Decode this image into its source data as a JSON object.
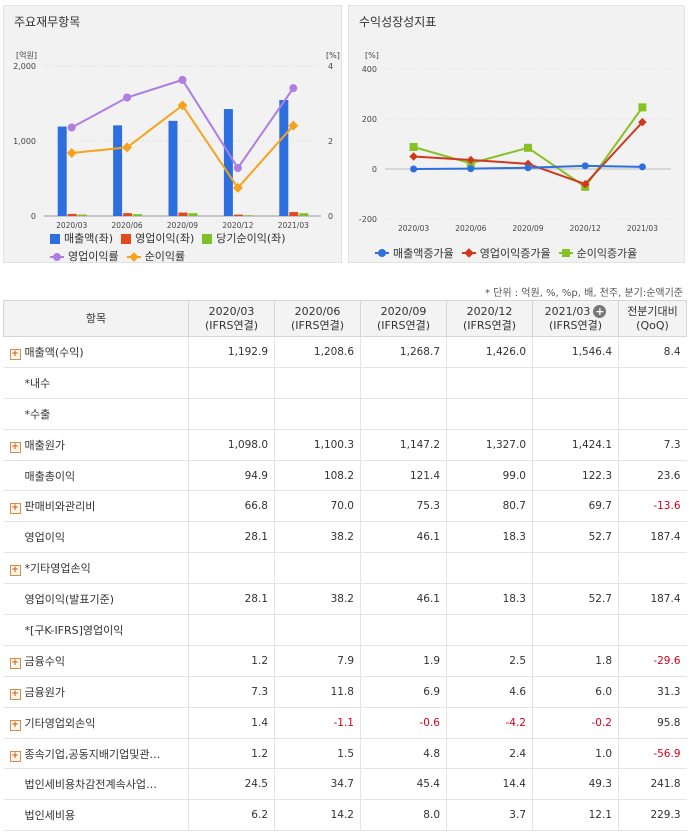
{
  "colors": {
    "revenue": "#2e6fe0",
    "op_income": "#e24a1b",
    "net_income": "#7dc12a",
    "op_margin": "#ae7ee0",
    "net_margin": "#f7a21a",
    "rev_growth": "#2e6fe0",
    "op_growth": "#d0381e",
    "net_growth": "#86c224",
    "negative": "#d0021b"
  },
  "left_panel": {
    "title": "주요재무항목",
    "y_left_unit": "[억원]",
    "y_right_unit": "[%]",
    "legend": [
      {
        "label": "매출액(좌)",
        "key": "revenue",
        "shape": "square"
      },
      {
        "label": "영업이익(좌)",
        "key": "op_income",
        "shape": "square"
      },
      {
        "label": "당기순이익(좌)",
        "key": "net_income",
        "shape": "square"
      },
      {
        "label": "영업이익률",
        "key": "op_margin",
        "shape": "circle"
      },
      {
        "label": "순이익률",
        "key": "net_margin",
        "shape": "diamond"
      }
    ]
  },
  "right_panel": {
    "title": "수익성장성지표",
    "y_unit": "[%]",
    "legend": [
      {
        "label": "매출액증가율",
        "key": "rev_growth",
        "shape": "circle"
      },
      {
        "label": "영업이익증가율",
        "key": "op_growth",
        "shape": "diamond"
      },
      {
        "label": "순이익증가율",
        "key": "net_growth",
        "shape": "square"
      }
    ]
  },
  "chart_data": [
    {
      "type": "bar",
      "title": "주요재무항목",
      "categories": [
        "2020/03",
        "2020/06",
        "2020/09",
        "2020/12",
        "2021/03"
      ],
      "y_left_ticks": [
        "0",
        "1,000",
        "2,000"
      ],
      "y_left_lim": [
        0,
        2000
      ],
      "y_right_ticks": [
        "0",
        "2",
        "4"
      ],
      "y_right_lim": [
        0,
        4
      ],
      "series": [
        {
          "name": "매출액(좌)",
          "axis": "left",
          "type": "bar",
          "values": [
            1192.9,
            1208.6,
            1268.7,
            1426.0,
            1546.4
          ]
        },
        {
          "name": "영업이익(좌)",
          "axis": "left",
          "type": "bar",
          "values": [
            28.1,
            38.2,
            46.1,
            18.3,
            52.7
          ]
        },
        {
          "name": "당기순이익(좌)",
          "axis": "left",
          "type": "bar",
          "values": [
            20.0,
            24.5,
            37.4,
            10.7,
            37.2
          ]
        },
        {
          "name": "영업이익률",
          "axis": "right",
          "type": "line",
          "values": [
            2.36,
            3.16,
            3.63,
            1.28,
            3.41
          ]
        },
        {
          "name": "순이익률",
          "axis": "right",
          "type": "line",
          "values": [
            1.68,
            1.83,
            2.95,
            0.75,
            2.41
          ]
        }
      ],
      "grid": true
    },
    {
      "type": "line",
      "title": "수익성장성지표",
      "categories": [
        "2020/03",
        "2020/06",
        "2020/09",
        "2020/12",
        "2021/03"
      ],
      "y_ticks": [
        "-200",
        "0",
        "200",
        "400"
      ],
      "ylim": [
        -200,
        400
      ],
      "series": [
        {
          "name": "매출액증가율",
          "values": [
            0.0,
            1.3,
            5.0,
            12.4,
            8.4
          ]
        },
        {
          "name": "영업이익증가율",
          "values": [
            50.0,
            36.0,
            20.7,
            -60.3,
            187.4
          ]
        },
        {
          "name": "순이익증가율",
          "values": [
            88.0,
            22.5,
            84.9,
            -71.4,
            246.5
          ]
        }
      ],
      "grid": true
    }
  ],
  "unit_note": "* 단위 : 억원, %, %p, 배, 천주, 분기:순액기준",
  "table": {
    "headers": [
      {
        "line1": "항목",
        "line2": ""
      },
      {
        "line1": "2020/03",
        "line2": "(IFRS연결)"
      },
      {
        "line1": "2020/06",
        "line2": "(IFRS연결)"
      },
      {
        "line1": "2020/09",
        "line2": "(IFRS연결)"
      },
      {
        "line1": "2020/12",
        "line2": "(IFRS연결)"
      },
      {
        "line1": "2021/03",
        "line2": "(IFRS연결)"
      },
      {
        "line1": "전분기대비",
        "line2": "(QoQ)"
      }
    ],
    "rows": [
      {
        "label": "매출액(수익)",
        "expand": true,
        "values": [
          "1,192.9",
          "1,208.6",
          "1,268.7",
          "1,426.0",
          "1,546.4"
        ],
        "qoq": "8.4"
      },
      {
        "label": "*내수",
        "expand": false,
        "values": [
          "",
          "",
          "",
          "",
          ""
        ],
        "qoq": ""
      },
      {
        "label": "*수출",
        "expand": false,
        "values": [
          "",
          "",
          "",
          "",
          ""
        ],
        "qoq": ""
      },
      {
        "label": "매출원가",
        "expand": true,
        "values": [
          "1,098.0",
          "1,100.3",
          "1,147.2",
          "1,327.0",
          "1,424.1"
        ],
        "qoq": "7.3"
      },
      {
        "label": "매출총이익",
        "expand": false,
        "values": [
          "94.9",
          "108.2",
          "121.4",
          "99.0",
          "122.3"
        ],
        "qoq": "23.6"
      },
      {
        "label": "판매비와관리비",
        "expand": true,
        "values": [
          "66.8",
          "70.0",
          "75.3",
          "80.7",
          "69.7"
        ],
        "qoq": "-13.6"
      },
      {
        "label": "영업이익",
        "expand": false,
        "values": [
          "28.1",
          "38.2",
          "46.1",
          "18.3",
          "52.7"
        ],
        "qoq": "187.4"
      },
      {
        "label": "*기타영업손익",
        "expand": true,
        "values": [
          "",
          "",
          "",
          "",
          ""
        ],
        "qoq": ""
      },
      {
        "label": "영업이익(발표기준)",
        "expand": false,
        "values": [
          "28.1",
          "38.2",
          "46.1",
          "18.3",
          "52.7"
        ],
        "qoq": "187.4"
      },
      {
        "label": "*[구K-IFRS]영업이익",
        "expand": false,
        "values": [
          "",
          "",
          "",
          "",
          ""
        ],
        "qoq": ""
      },
      {
        "label": "금융수익",
        "expand": true,
        "values": [
          "1.2",
          "7.9",
          "1.9",
          "2.5",
          "1.8"
        ],
        "qoq": "-29.6"
      },
      {
        "label": "금융원가",
        "expand": true,
        "values": [
          "7.3",
          "11.8",
          "6.9",
          "4.6",
          "6.0"
        ],
        "qoq": "31.3"
      },
      {
        "label": "기타영업외손익",
        "expand": true,
        "values": [
          "1.4",
          "-1.1",
          "-0.6",
          "-4.2",
          "-0.2"
        ],
        "qoq": "95.8"
      },
      {
        "label": "종속기업,공동지배기업및관…",
        "expand": true,
        "values": [
          "1.2",
          "1.5",
          "4.8",
          "2.4",
          "1.0"
        ],
        "qoq": "-56.9"
      },
      {
        "label": "법인세비용차감전계속사업…",
        "expand": false,
        "values": [
          "24.5",
          "34.7",
          "45.4",
          "14.4",
          "49.3"
        ],
        "qoq": "241.8"
      },
      {
        "label": "법인세비용",
        "expand": false,
        "values": [
          "6.2",
          "14.2",
          "8.0",
          "3.7",
          "12.1"
        ],
        "qoq": "229.3"
      }
    ]
  }
}
